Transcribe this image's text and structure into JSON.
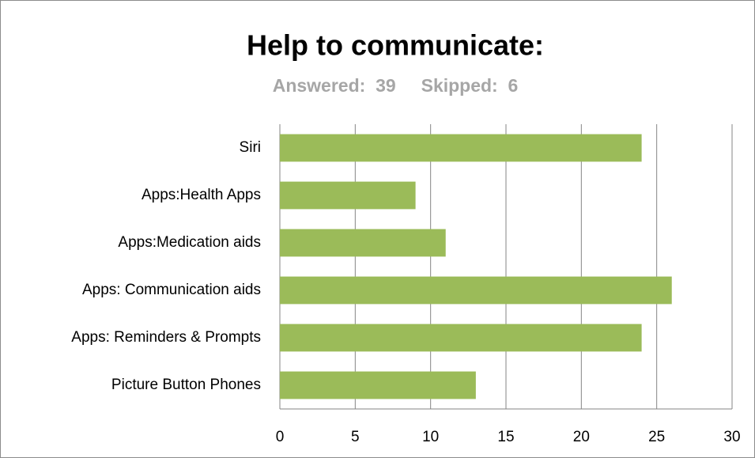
{
  "chart_data": {
    "type": "bar",
    "orientation": "horizontal",
    "title": "Help to communicate:",
    "subtitle": "Answered:  39     Skipped:  6",
    "categories": [
      "Siri",
      "Apps:Health Apps",
      "Apps:Medication aids",
      "Apps: Communication aids",
      "Apps: Reminders & Prompts",
      "Picture Button Phones"
    ],
    "values": [
      24,
      9,
      11,
      26,
      24,
      13
    ],
    "color": "#9bbb59",
    "xlim": [
      0,
      30
    ],
    "xticks": [
      0,
      5,
      10,
      15,
      20,
      25,
      30
    ],
    "grid": true
  }
}
